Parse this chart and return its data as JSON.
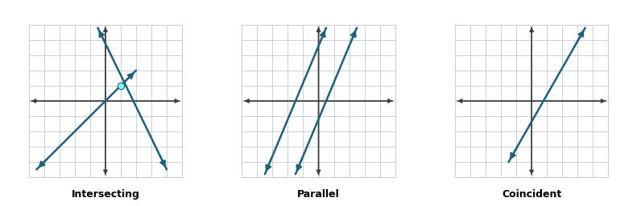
{
  "fig_width": 7.91,
  "fig_height": 2.57,
  "dpi": 100,
  "background_color": "#ffffff",
  "grid_color": "#d0d0d0",
  "axis_color": "#404040",
  "line_color": "#1f5f7a",
  "dot_color": "#80ffee",
  "xlim": [
    -5,
    5
  ],
  "ylim": [
    -5,
    5
  ],
  "titles": [
    "Intersecting",
    "Parallel",
    "Coincident"
  ],
  "title_fontsize": 9,
  "title_fontweight": "bold",
  "panels": [
    {
      "lines": [
        {
          "x1": -4.5,
          "y1": -4.5,
          "x2": 2.0,
          "y2": 2.0
        },
        {
          "x1": -0.5,
          "y1": 4.8,
          "x2": 4.0,
          "y2": -4.5
        }
      ],
      "intersection": [
        1,
        1
      ],
      "dot_color": "#80ffee"
    },
    {
      "lines": [
        {
          "x1": -3.5,
          "y1": -4.8,
          "x2": 0.5,
          "y2": 4.8
        },
        {
          "x1": -1.5,
          "y1": -4.8,
          "x2": 2.5,
          "y2": 4.8
        }
      ],
      "intersection": null,
      "dot_color": null
    },
    {
      "lines": [
        {
          "x1": -1.5,
          "y1": -4.0,
          "x2": 3.5,
          "y2": 4.8
        }
      ],
      "intersection": null,
      "dot_color": null
    }
  ]
}
